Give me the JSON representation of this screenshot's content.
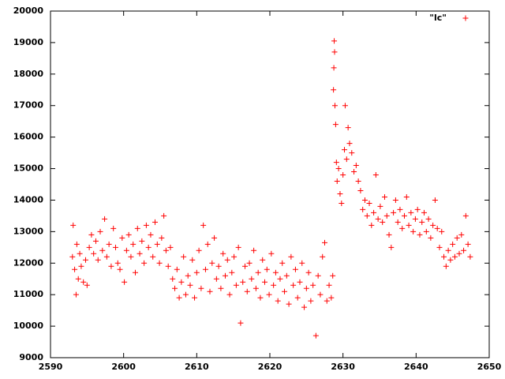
{
  "chart_data": {
    "type": "scatter",
    "xlim": [
      2590,
      2650
    ],
    "xticks": [
      2590,
      2600,
      2610,
      2620,
      2630,
      2640,
      2650
    ],
    "ylim": [
      9000,
      20000
    ],
    "yticks": [
      9000,
      10000,
      11000,
      12000,
      13000,
      14000,
      15000,
      16000,
      17000,
      18000,
      19000,
      20000
    ],
    "grid": false,
    "legend": "top-right",
    "x": [
      2593.0,
      2593.1,
      2593.3,
      2593.5,
      2593.6,
      2593.8,
      2594.0,
      2594.2,
      2594.5,
      2594.8,
      2595.0,
      2595.3,
      2595.6,
      2595.9,
      2596.2,
      2596.5,
      2596.8,
      2597.1,
      2597.4,
      2597.7,
      2598.0,
      2598.3,
      2598.6,
      2598.9,
      2599.2,
      2599.5,
      2599.8,
      2600.1,
      2600.4,
      2600.7,
      2601.0,
      2601.3,
      2601.6,
      2601.9,
      2602.2,
      2602.5,
      2602.8,
      2603.1,
      2603.4,
      2603.7,
      2604.0,
      2604.3,
      2604.6,
      2604.9,
      2605.2,
      2605.5,
      2605.8,
      2606.1,
      2606.4,
      2606.7,
      2607.0,
      2607.3,
      2607.6,
      2607.9,
      2608.2,
      2608.5,
      2608.8,
      2609.1,
      2609.4,
      2609.7,
      2610.0,
      2610.3,
      2610.6,
      2610.9,
      2611.2,
      2611.5,
      2611.8,
      2612.1,
      2612.4,
      2612.7,
      2613.0,
      2613.3,
      2613.6,
      2613.9,
      2614.2,
      2614.5,
      2614.8,
      2615.1,
      2615.4,
      2615.7,
      2616.0,
      2616.3,
      2616.6,
      2616.9,
      2617.2,
      2617.5,
      2617.8,
      2618.1,
      2618.4,
      2618.7,
      2619.0,
      2619.3,
      2619.6,
      2619.9,
      2620.2,
      2620.5,
      2620.8,
      2621.1,
      2621.4,
      2621.7,
      2622.0,
      2622.3,
      2622.6,
      2622.9,
      2623.2,
      2623.5,
      2623.8,
      2624.1,
      2624.4,
      2624.7,
      2625.0,
      2625.3,
      2625.6,
      2625.9,
      2626.3,
      2626.6,
      2626.9,
      2627.2,
      2627.5,
      2627.8,
      2628.1,
      2628.4,
      2628.6,
      2628.7,
      2628.75,
      2628.8,
      2628.85,
      2628.9,
      2629.0,
      2629.1,
      2629.2,
      2629.4,
      2629.6,
      2629.8,
      2630.0,
      2630.2,
      2630.3,
      2630.5,
      2630.7,
      2630.9,
      2631.2,
      2631.5,
      2631.8,
      2632.1,
      2632.4,
      2632.7,
      2633.0,
      2633.3,
      2633.6,
      2633.9,
      2634.2,
      2634.5,
      2634.8,
      2635.1,
      2635.4,
      2635.7,
      2636.0,
      2636.3,
      2636.6,
      2636.9,
      2637.2,
      2637.5,
      2637.8,
      2638.1,
      2638.4,
      2638.7,
      2639.0,
      2639.3,
      2639.6,
      2639.9,
      2640.2,
      2640.5,
      2640.8,
      2641.1,
      2641.4,
      2641.7,
      2642.0,
      2642.3,
      2642.6,
      2642.9,
      2643.2,
      2643.5,
      2643.8,
      2644.1,
      2644.4,
      2644.7,
      2645.0,
      2645.3,
      2645.6,
      2645.9,
      2646.2,
      2646.5,
      2646.8,
      2647.1,
      2647.4
    ],
    "series": [
      {
        "name": "\"lc\"",
        "color": "#ff0000",
        "values": [
          12200,
          13200,
          11800,
          11000,
          12600,
          11500,
          12300,
          11900,
          11400,
          12100,
          11300,
          12500,
          12900,
          12300,
          12700,
          12100,
          13000,
          12400,
          13400,
          12200,
          12600,
          11900,
          13100,
          12500,
          12000,
          11800,
          12800,
          11400,
          12400,
          12900,
          12200,
          12600,
          11700,
          13100,
          12300,
          12700,
          12000,
          13200,
          12500,
          12900,
          12200,
          13300,
          12600,
          12000,
          12800,
          13500,
          12400,
          11900,
          12500,
          11500,
          11200,
          11800,
          10900,
          11400,
          12200,
          11000,
          11600,
          11300,
          12100,
          10900,
          11700,
          12400,
          11200,
          13200,
          11800,
          12600,
          11100,
          12000,
          12800,
          11500,
          11900,
          11200,
          12300,
          11600,
          12100,
          11000,
          11700,
          12200,
          11300,
          12500,
          10100,
          11400,
          11900,
          11100,
          12000,
          11500,
          12400,
          11200,
          11700,
          10900,
          12100,
          11400,
          11800,
          11000,
          12300,
          11300,
          11700,
          10800,
          11500,
          12000,
          11100,
          11600,
          10700,
          12200,
          11300,
          11800,
          10900,
          11400,
          12000,
          10600,
          11200,
          11700,
          10800,
          11300,
          9700,
          11600,
          11000,
          12200,
          12650,
          10800,
          11300,
          10900,
          11600,
          17500,
          18200,
          19050,
          18700,
          17000,
          16400,
          15200,
          14600,
          15000,
          14200,
          13900,
          14800,
          15600,
          17000,
          15300,
          16300,
          15800,
          15500,
          14900,
          15100,
          14600,
          14300,
          13700,
          14000,
          13500,
          13900,
          13200,
          13600,
          14800,
          13400,
          13800,
          13300,
          14100,
          13500,
          12900,
          12500,
          13600,
          14000,
          13300,
          13700,
          13100,
          13500,
          14100,
          13200,
          13600,
          13000,
          13400,
          13700,
          12900,
          13300,
          13600,
          13000,
          13400,
          12800,
          13200,
          14000,
          13100,
          12500,
          13000,
          12200,
          11900,
          12400,
          12100,
          12600,
          12200,
          12800,
          12300,
          12900,
          12400,
          13500,
          12600,
          12200
        ]
      }
    ]
  }
}
